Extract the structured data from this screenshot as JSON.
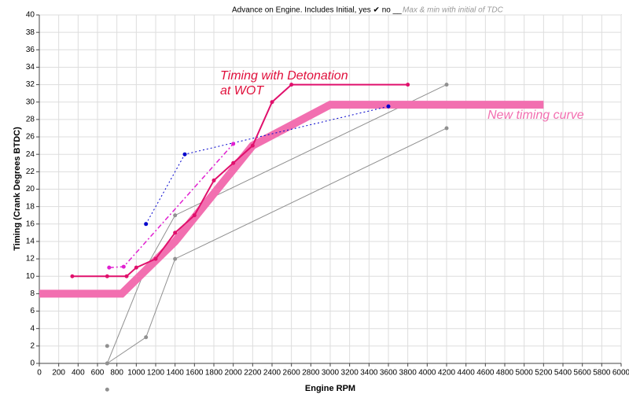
{
  "chart_data": {
    "type": "line",
    "title": "Advance on Engine.   Includes Initial, yes ✔ no __",
    "subtitle": "Max & min with initial of TDC",
    "x_label": "Engine RPM",
    "y_label": "Timing (Crank Degrees BTDC)",
    "annotations": [
      {
        "lines": [
          "Timing with Detonation",
          "at WOT"
        ],
        "color": "#e0103c"
      },
      {
        "lines": [
          "New timing curve"
        ],
        "color": "#f26fb0"
      }
    ],
    "xlim": [
      0,
      6000
    ],
    "ylim": [
      0,
      40
    ],
    "xticks": [
      0,
      200,
      400,
      600,
      800,
      1000,
      1200,
      1400,
      1600,
      1800,
      2000,
      2200,
      2400,
      2600,
      2800,
      3000,
      3200,
      3400,
      3600,
      3800,
      4000,
      4200,
      4400,
      4600,
      4800,
      5000,
      5200,
      5400,
      5600,
      5800,
      6000
    ],
    "yticks": [
      0,
      2,
      4,
      6,
      8,
      10,
      12,
      14,
      16,
      18,
      20,
      22,
      24,
      26,
      28,
      30,
      32,
      34,
      36,
      38,
      40
    ],
    "grid": true,
    "series": [
      {
        "color": "#909090",
        "width": 1,
        "dash": "none",
        "markers": true,
        "x": [
          700,
          1100,
          1400,
          4200
        ],
        "values": [
          0,
          11,
          17,
          32
        ]
      },
      {
        "color": "#909090",
        "width": 1,
        "dash": "none",
        "markers": true,
        "x": [
          700,
          1100,
          1400,
          4200
        ],
        "values": [
          0,
          3,
          12,
          27
        ]
      },
      {
        "color": "#909090",
        "width": 0,
        "dash": "none",
        "markers": true,
        "x": [
          700,
          700
        ],
        "values": [
          2,
          -3
        ]
      },
      {
        "color": "#f26fb0",
        "width": 10,
        "dash": "none",
        "markers": false,
        "x": [
          0,
          850,
          1400,
          2200,
          3000,
          5200
        ],
        "values": [
          8,
          8,
          14,
          25,
          29.7,
          29.7
        ]
      },
      {
        "color": "#0000cc",
        "width": 1,
        "dash": "2 3",
        "markers": true,
        "x": [
          1100,
          1500,
          3600
        ],
        "values": [
          16,
          24,
          29.5
        ]
      },
      {
        "color": "#e020d0",
        "width": 1.5,
        "dash": "6 3 2 3",
        "markers": true,
        "x": [
          720,
          870,
          2000
        ],
        "values": [
          11,
          11.1,
          25.2
        ]
      },
      {
        "color": "#e0106c",
        "width": 2,
        "dash": "none",
        "markers": true,
        "x": [
          340,
          700,
          900,
          1000,
          1200,
          1400,
          1600,
          1800,
          2000,
          2200,
          2400,
          2600,
          3800
        ],
        "values": [
          10,
          10,
          10,
          11,
          12,
          15,
          17,
          21,
          23,
          25,
          30,
          32,
          32
        ]
      }
    ]
  }
}
